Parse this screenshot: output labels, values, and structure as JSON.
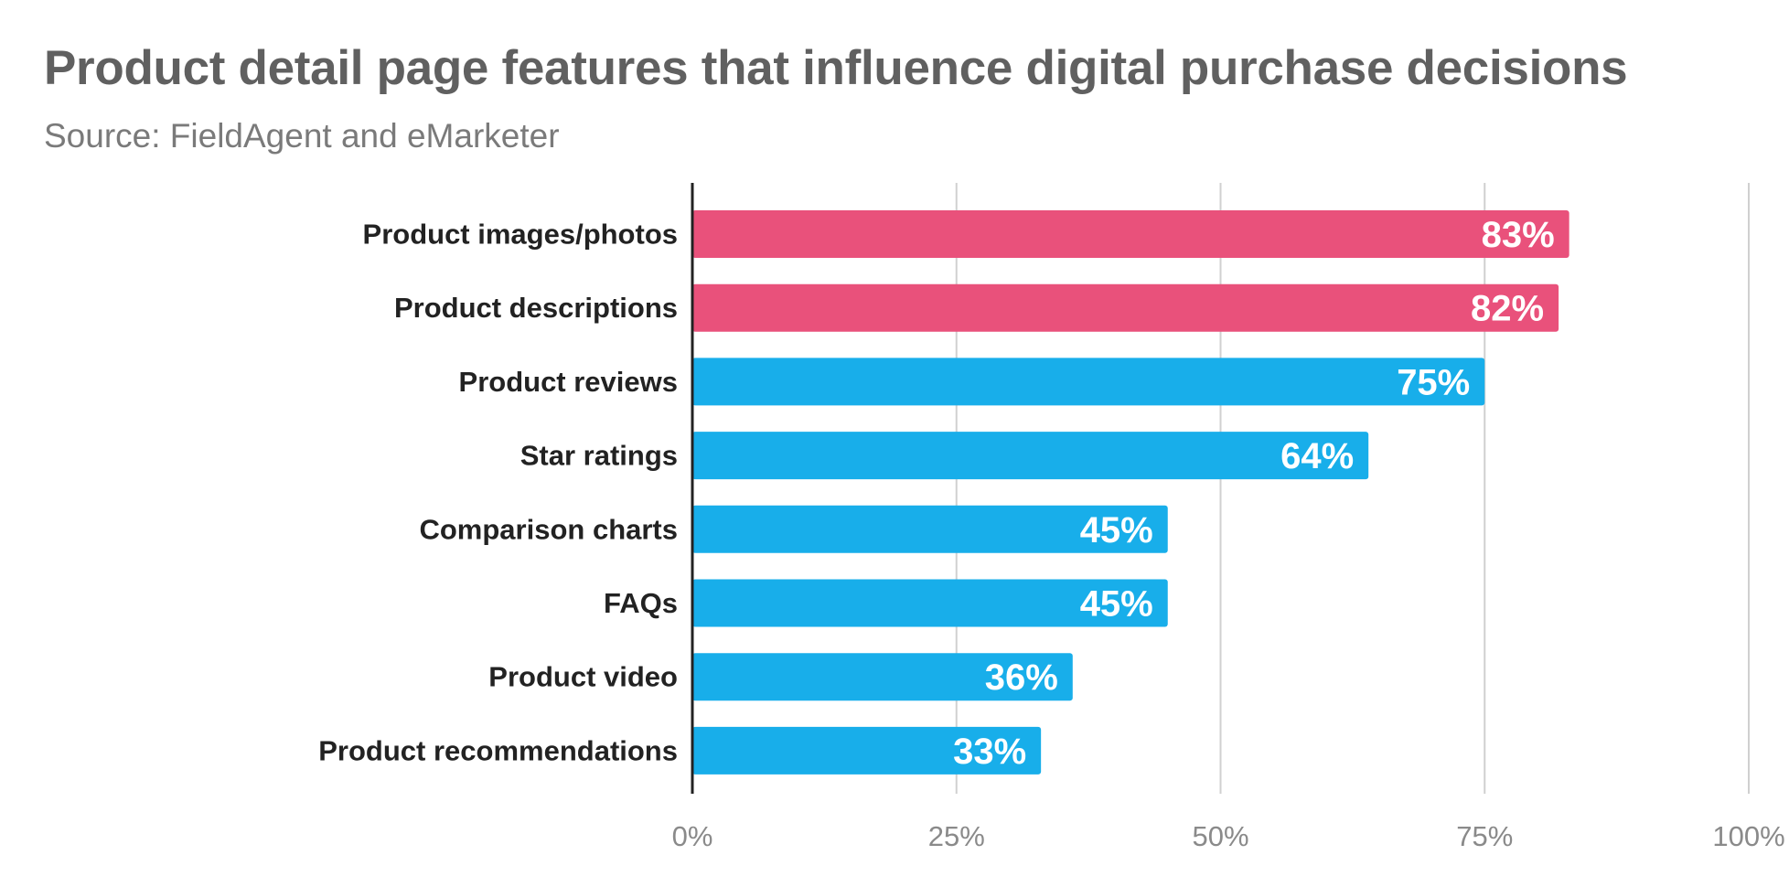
{
  "chart_data": {
    "type": "bar",
    "orientation": "horizontal",
    "title": "Product detail page features that influence digital purchase decisions",
    "subtitle": "Source: FieldAgent and eMarketer",
    "categories": [
      "Product images/photos",
      "Product descriptions",
      "Product reviews",
      "Star ratings",
      "Comparison charts",
      "FAQs",
      "Product video",
      "Product recommendations"
    ],
    "values": [
      83,
      82,
      75,
      64,
      45,
      45,
      36,
      33
    ],
    "value_labels": [
      "83%",
      "82%",
      "75%",
      "64%",
      "45%",
      "45%",
      "36%",
      "33%"
    ],
    "bar_colors": [
      "#e9517b",
      "#e9517b",
      "#18aeea",
      "#18aeea",
      "#18aeea",
      "#18aeea",
      "#18aeea",
      "#18aeea"
    ],
    "xlim": [
      0,
      100
    ],
    "xticks": [
      0,
      25,
      50,
      75,
      100
    ],
    "xtick_labels": [
      "0%",
      "25%",
      "50%",
      "75%",
      "100%"
    ],
    "grid": true,
    "xlabel": "",
    "ylabel": ""
  },
  "colors": {
    "highlight": "#e9517b",
    "primary": "#18aeea",
    "grid": "#d0d0d0",
    "axis": "#222222"
  }
}
